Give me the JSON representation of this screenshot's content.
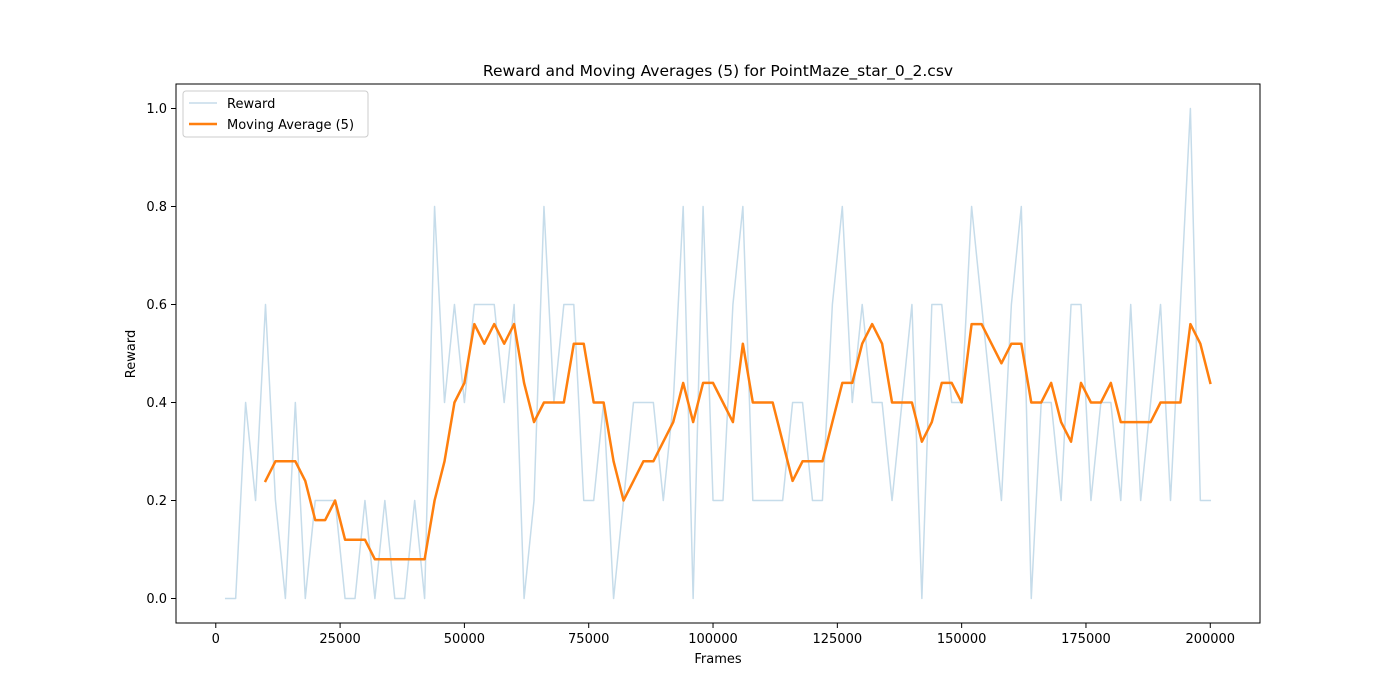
{
  "chart_data": {
    "type": "line",
    "title": "Reward and Moving Averages (5) for PointMaze_star_0_2.csv",
    "xlabel": "Frames",
    "ylabel": "Reward",
    "xlim": [
      -8000,
      210000
    ],
    "ylim": [
      -0.05,
      1.05
    ],
    "xticks": [
      0,
      25000,
      50000,
      75000,
      100000,
      125000,
      150000,
      175000,
      200000
    ],
    "xtick_labels": [
      "0",
      "25000",
      "50000",
      "75000",
      "100000",
      "125000",
      "150000",
      "175000",
      "200000"
    ],
    "yticks": [
      0.0,
      0.2,
      0.4,
      0.6,
      0.8,
      1.0
    ],
    "ytick_labels": [
      "0.0",
      "0.2",
      "0.4",
      "0.6",
      "0.8",
      "1.0"
    ],
    "grid": false,
    "legend_position": "top-left",
    "series": [
      {
        "name": "Reward",
        "color": "#c6dcea",
        "x": [
          2000,
          4000,
          6000,
          8000,
          10000,
          12000,
          14000,
          16000,
          18000,
          20000,
          22000,
          24000,
          26000,
          28000,
          30000,
          32000,
          34000,
          36000,
          38000,
          40000,
          42000,
          44000,
          46000,
          48000,
          50000,
          52000,
          54000,
          56000,
          58000,
          60000,
          62000,
          64000,
          66000,
          68000,
          70000,
          72000,
          74000,
          76000,
          78000,
          80000,
          82000,
          84000,
          86000,
          88000,
          90000,
          92000,
          94000,
          96000,
          98000,
          100000,
          102000,
          104000,
          106000,
          108000,
          110000,
          112000,
          114000,
          116000,
          118000,
          120000,
          122000,
          124000,
          126000,
          128000,
          130000,
          132000,
          134000,
          136000,
          138000,
          140000,
          142000,
          144000,
          146000,
          148000,
          150000,
          152000,
          154000,
          156000,
          158000,
          160000,
          162000,
          164000,
          166000,
          168000,
          170000,
          172000,
          174000,
          176000,
          178000,
          180000,
          182000,
          184000,
          186000,
          188000,
          190000,
          192000,
          194000,
          196000,
          198000,
          200000
        ],
        "y": [
          0.0,
          0.0,
          0.4,
          0.2,
          0.6,
          0.2,
          0.0,
          0.4,
          0.0,
          0.2,
          0.2,
          0.2,
          0.0,
          0.0,
          0.2,
          0.0,
          0.2,
          0.0,
          0.0,
          0.2,
          0.0,
          0.8,
          0.4,
          0.6,
          0.4,
          0.6,
          0.6,
          0.6,
          0.4,
          0.6,
          0.0,
          0.2,
          0.8,
          0.4,
          0.6,
          0.6,
          0.2,
          0.2,
          0.4,
          0.0,
          0.2,
          0.4,
          0.4,
          0.4,
          0.2,
          0.4,
          0.8,
          0.0,
          0.8,
          0.2,
          0.2,
          0.6,
          0.8,
          0.2,
          0.2,
          0.2,
          0.2,
          0.4,
          0.4,
          0.2,
          0.2,
          0.6,
          0.8,
          0.4,
          0.6,
          0.4,
          0.4,
          0.2,
          0.4,
          0.6,
          0.0,
          0.6,
          0.6,
          0.4,
          0.4,
          0.8,
          0.6,
          0.4,
          0.2,
          0.6,
          0.8,
          0.0,
          0.4,
          0.4,
          0.2,
          0.6,
          0.6,
          0.2,
          0.4,
          0.4,
          0.2,
          0.6,
          0.2,
          0.4,
          0.6,
          0.2,
          0.6,
          1.0,
          0.2,
          0.2
        ]
      },
      {
        "name": "Moving Average (5)",
        "color": "#ff7f0e",
        "x": [
          10000,
          12000,
          14000,
          16000,
          18000,
          20000,
          22000,
          24000,
          26000,
          28000,
          30000,
          32000,
          34000,
          36000,
          38000,
          40000,
          42000,
          44000,
          46000,
          48000,
          50000,
          52000,
          54000,
          56000,
          58000,
          60000,
          62000,
          64000,
          66000,
          68000,
          70000,
          72000,
          74000,
          76000,
          78000,
          80000,
          82000,
          84000,
          86000,
          88000,
          90000,
          92000,
          94000,
          96000,
          98000,
          100000,
          102000,
          104000,
          106000,
          108000,
          110000,
          112000,
          114000,
          116000,
          118000,
          120000,
          122000,
          124000,
          126000,
          128000,
          130000,
          132000,
          134000,
          136000,
          138000,
          140000,
          142000,
          144000,
          146000,
          148000,
          150000,
          152000,
          154000,
          156000,
          158000,
          160000,
          162000,
          164000,
          166000,
          168000,
          170000,
          172000,
          174000,
          176000,
          178000,
          180000,
          182000,
          184000,
          186000,
          188000,
          190000,
          192000,
          194000,
          196000,
          198000,
          200000
        ],
        "y": [
          0.24,
          0.28,
          0.28,
          0.28,
          0.24,
          0.16,
          0.16,
          0.2,
          0.12,
          0.12,
          0.12,
          0.08,
          0.08,
          0.08,
          0.08,
          0.08,
          0.08,
          0.2,
          0.28,
          0.4,
          0.44,
          0.56,
          0.52,
          0.56,
          0.52,
          0.56,
          0.44,
          0.36,
          0.4,
          0.4,
          0.4,
          0.52,
          0.52,
          0.4,
          0.4,
          0.28,
          0.2,
          0.24,
          0.28,
          0.28,
          0.32,
          0.36,
          0.44,
          0.36,
          0.44,
          0.44,
          0.4,
          0.36,
          0.52,
          0.4,
          0.4,
          0.4,
          0.32,
          0.24,
          0.28,
          0.28,
          0.28,
          0.36,
          0.44,
          0.44,
          0.52,
          0.56,
          0.52,
          0.4,
          0.4,
          0.4,
          0.32,
          0.36,
          0.44,
          0.44,
          0.4,
          0.56,
          0.56,
          0.52,
          0.48,
          0.52,
          0.52,
          0.4,
          0.4,
          0.44,
          0.36,
          0.32,
          0.44,
          0.4,
          0.4,
          0.44,
          0.36,
          0.36,
          0.36,
          0.36,
          0.4,
          0.4,
          0.4,
          0.56,
          0.52,
          0.44
        ]
      }
    ]
  }
}
